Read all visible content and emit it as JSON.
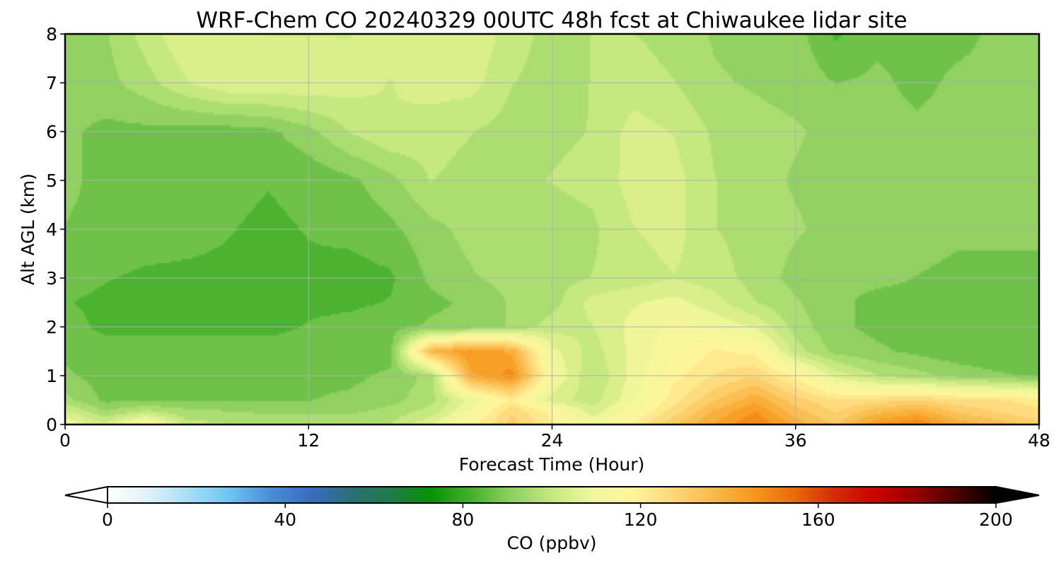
{
  "chart_data": {
    "type": "heatmap",
    "title": "WRF-Chem CO  20240329 00UTC 48h fcst at Chiwaukee lidar site",
    "xlabel": "Forecast Time (Hour)",
    "ylabel": "Alt AGL (km)",
    "xlim": [
      0,
      48
    ],
    "ylim": [
      0,
      8
    ],
    "xticks": [
      "0",
      "12",
      "24",
      "36",
      "48"
    ],
    "yticks": [
      "0",
      "1",
      "2",
      "3",
      "4",
      "5",
      "6",
      "7",
      "8"
    ],
    "grid": true,
    "x": [
      0,
      2,
      4,
      6,
      8,
      10,
      12,
      14,
      16,
      18,
      20,
      22,
      24,
      26,
      28,
      30,
      32,
      34,
      36,
      38,
      40,
      42,
      44,
      46,
      48
    ],
    "y": [
      0,
      0.25,
      0.5,
      1,
      1.5,
      2,
      2.5,
      3,
      4,
      5,
      6,
      7,
      8
    ],
    "z": [
      [
        110,
        104,
        118,
        100,
        98,
        96,
        96,
        96,
        98,
        106,
        118,
        130,
        120,
        112,
        120,
        132,
        142,
        150,
        140,
        132,
        145,
        150,
        140,
        135,
        130
      ],
      [
        104,
        94,
        100,
        95,
        94,
        93,
        93,
        93,
        95,
        100,
        112,
        128,
        118,
        104,
        115,
        126,
        138,
        146,
        135,
        128,
        136,
        140,
        132,
        128,
        125
      ],
      [
        95,
        88,
        88,
        89,
        89,
        89,
        89,
        90,
        92,
        96,
        108,
        120,
        104,
        100,
        110,
        122,
        132,
        140,
        130,
        124,
        126,
        128,
        125,
        124,
        122
      ],
      [
        90,
        87,
        87,
        88,
        88,
        88,
        88,
        88,
        90,
        95,
        140,
        148,
        112,
        98,
        108,
        118,
        124,
        128,
        118,
        105,
        98,
        95,
        92,
        90,
        88
      ],
      [
        88,
        86,
        86,
        86,
        86,
        86,
        86,
        87,
        87,
        136,
        146,
        140,
        108,
        100,
        108,
        114,
        120,
        118,
        100,
        92,
        90,
        88,
        86,
        85,
        85
      ],
      [
        86,
        84,
        84,
        84,
        84,
        84,
        85,
        86,
        87,
        90,
        91,
        94,
        100,
        102,
        108,
        112,
        110,
        106,
        96,
        90,
        88,
        87,
        86,
        85,
        85
      ],
      [
        85,
        84,
        84,
        84,
        84,
        84,
        84,
        84,
        85,
        88,
        90,
        94,
        96,
        104,
        106,
        108,
        104,
        98,
        94,
        90,
        88,
        88,
        88,
        88,
        88
      ],
      [
        86,
        85,
        84,
        84,
        84,
        84,
        84,
        83,
        84,
        90,
        93,
        95,
        96,
        98,
        100,
        102,
        100,
        96,
        92,
        90,
        90,
        89,
        88,
        88,
        88
      ],
      [
        89,
        88,
        87,
        86,
        85,
        84,
        85,
        86,
        88,
        92,
        95,
        96,
        96,
        97,
        102,
        104,
        98,
        96,
        94,
        92,
        91,
        91,
        90,
        90,
        90
      ],
      [
        90,
        88,
        87,
        86,
        86,
        85,
        86,
        88,
        92,
        98,
        96,
        97,
        98,
        99,
        104,
        104,
        98,
        95,
        93,
        92,
        92,
        93,
        92,
        91,
        90
      ],
      [
        90,
        88,
        88,
        87,
        87,
        88,
        92,
        98,
        102,
        100,
        98,
        96,
        97,
        98,
        104,
        102,
        97,
        95,
        94,
        92,
        91,
        90,
        91,
        91,
        90
      ],
      [
        92,
        92,
        96,
        102,
        106,
        106,
        106,
        104,
        102,
        104,
        104,
        98,
        96,
        98,
        100,
        98,
        94,
        93,
        92,
        89,
        90,
        88,
        90,
        90,
        90
      ],
      [
        92,
        93,
        100,
        106,
        104,
        102,
        102,
        102,
        104,
        104,
        106,
        100,
        96,
        98,
        98,
        96,
        93,
        92,
        91,
        84,
        88,
        88,
        88,
        90,
        90
      ]
    ],
    "colorbar": {
      "label": "CO  (ppbv)",
      "range": [
        0,
        200
      ],
      "ticks": [
        "0",
        "40",
        "80",
        "120",
        "160",
        "200"
      ],
      "extend": "both",
      "colors": [
        "#ffffff",
        "#dff1fa",
        "#a9ddf6",
        "#6cc6f2",
        "#4b8fd9",
        "#3a6bc4",
        "#2c6e7a",
        "#1f7a48",
        "#069206",
        "#45b02b",
        "#8fd060",
        "#c5e880",
        "#f0f79a",
        "#fff59a",
        "#fdd77a",
        "#fbb94a",
        "#f7981c",
        "#ea6a0a",
        "#d22d08",
        "#cc0000",
        "#9a0000",
        "#4d0000",
        "#000000"
      ]
    }
  }
}
